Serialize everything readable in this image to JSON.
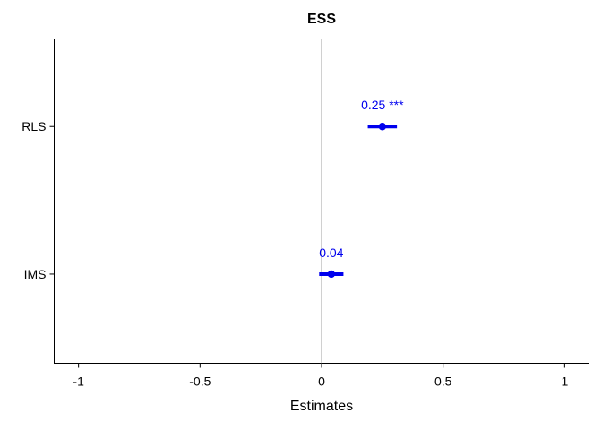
{
  "chart_data": {
    "type": "scatter",
    "title": "ESS",
    "xlabel": "Estimates",
    "ylabel": "",
    "xlim": [
      -1.1,
      1.1
    ],
    "xticks": [
      -1,
      -0.5,
      0,
      0.5,
      1
    ],
    "xtick_labels": [
      "-1",
      "-0.5",
      "0",
      "0.5",
      "1"
    ],
    "reference_line": 0,
    "grid": false,
    "categories": [
      "RLS",
      "IMS"
    ],
    "series": [
      {
        "points": [
          {
            "term": "RLS",
            "estimate": 0.25,
            "ci": [
              0.19,
              0.31
            ],
            "label": "0.25 ***"
          },
          {
            "term": "IMS",
            "estimate": 0.04,
            "ci": [
              -0.01,
              0.09
            ],
            "label": "0.04"
          }
        ]
      }
    ],
    "colors": {
      "point": "#0000ee",
      "reference_line": "#a0a0a0",
      "frame": "#000000"
    }
  }
}
